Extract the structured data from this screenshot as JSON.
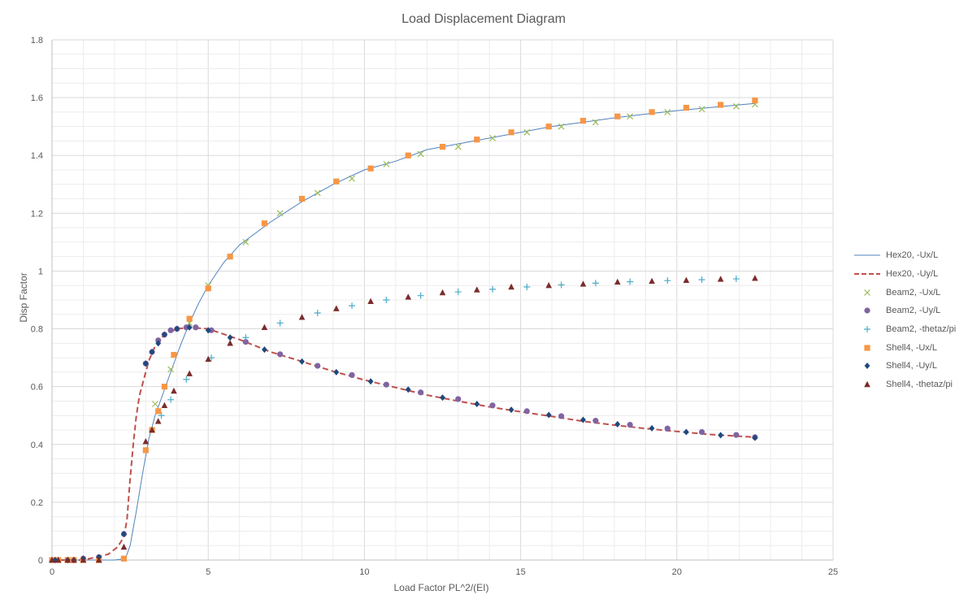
{
  "chart_data": {
    "type": "scatter",
    "title": "Load Displacement Diagram",
    "xlabel": "Load Factor PL^2/(EI)",
    "ylabel": "Disp Factor",
    "xlim": [
      0,
      25
    ],
    "ylim": [
      0,
      1.8
    ],
    "x_ticks": [
      "0",
      "5",
      "10",
      "15",
      "20",
      "25"
    ],
    "y_ticks": [
      "0",
      "0.2",
      "0.4",
      "0.6",
      "0.8",
      "1",
      "1.2",
      "1.4",
      "1.6",
      "1.8"
    ],
    "grid": true,
    "legend_position": "right",
    "series": [
      {
        "name": "Hex20, -Ux/L",
        "style": "line",
        "color": "#4f81bd",
        "x": [
          0,
          1,
          2,
          2.35,
          2.5,
          2.7,
          2.9,
          3.1,
          3.3,
          3.5,
          3.8,
          4.1,
          4.4,
          4.7,
          5.0,
          5.5,
          6.0,
          6.5,
          7.0,
          8.0,
          9.0,
          10.0,
          11.0,
          12.0,
          13.0,
          14.0,
          15.0,
          16.0,
          17.0,
          18.0,
          19.0,
          20.0,
          21.0,
          22.5
        ],
        "y": [
          0,
          0,
          0,
          0.005,
          0.05,
          0.17,
          0.3,
          0.42,
          0.5,
          0.56,
          0.65,
          0.74,
          0.82,
          0.89,
          0.95,
          1.03,
          1.09,
          1.13,
          1.17,
          1.24,
          1.3,
          1.35,
          1.38,
          1.42,
          1.44,
          1.46,
          1.48,
          1.5,
          1.515,
          1.53,
          1.543,
          1.555,
          1.565,
          1.58
        ]
      },
      {
        "name": "Hex20, -Uy/L",
        "style": "dashed",
        "color": "#c0504d",
        "x": [
          0,
          1,
          1.8,
          2.1,
          2.3,
          2.4,
          2.5,
          2.6,
          2.7,
          2.8,
          2.9,
          3.0,
          3.1,
          3.3,
          3.6,
          4.0,
          4.4,
          5.0,
          6.0,
          7.0,
          8.0,
          9.0,
          10.0,
          11.0,
          12.0,
          13.0,
          14.0,
          15.0,
          16.0,
          17.0,
          18.0,
          19.0,
          20.0,
          21.0,
          22.5
        ],
        "y": [
          0,
          0,
          0.02,
          0.045,
          0.08,
          0.14,
          0.28,
          0.4,
          0.5,
          0.57,
          0.61,
          0.65,
          0.69,
          0.74,
          0.78,
          0.8,
          0.805,
          0.8,
          0.763,
          0.72,
          0.687,
          0.653,
          0.623,
          0.597,
          0.571,
          0.55,
          0.53,
          0.513,
          0.497,
          0.48,
          0.467,
          0.455,
          0.445,
          0.435,
          0.425
        ]
      },
      {
        "name": "Beam2, -Ux/L",
        "style": "marker",
        "marker": "x",
        "color": "#9bbb59",
        "x": [
          3.3,
          3.8,
          4.4,
          5.0,
          6.2,
          7.3,
          8.5,
          9.6,
          10.7,
          11.8,
          13.0,
          14.1,
          15.2,
          16.3,
          17.4,
          18.5,
          19.7,
          20.8,
          21.9,
          22.5
        ],
        "y": [
          0.54,
          0.66,
          0.82,
          0.95,
          1.1,
          1.2,
          1.27,
          1.32,
          1.37,
          1.405,
          1.43,
          1.46,
          1.48,
          1.5,
          1.515,
          1.535,
          1.55,
          1.56,
          1.57,
          1.577
        ]
      },
      {
        "name": "Beam2, -Uy/L",
        "style": "marker",
        "marker": "circle",
        "color": "#8064a2",
        "x": [
          0.1,
          0.5,
          0.7,
          1.0,
          1.5,
          2.3,
          3.0,
          3.2,
          3.4,
          3.6,
          3.8,
          4.0,
          4.3,
          4.6,
          5.1,
          6.2,
          7.3,
          8.5,
          9.6,
          10.7,
          11.8,
          13.0,
          14.1,
          15.2,
          16.3,
          17.4,
          18.5,
          19.7,
          20.8,
          21.9,
          22.5
        ],
        "y": [
          0,
          0,
          0,
          0.005,
          0.01,
          0.09,
          0.68,
          0.72,
          0.76,
          0.78,
          0.795,
          0.8,
          0.805,
          0.805,
          0.795,
          0.755,
          0.712,
          0.672,
          0.64,
          0.607,
          0.58,
          0.557,
          0.535,
          0.515,
          0.498,
          0.482,
          0.468,
          0.455,
          0.443,
          0.433,
          0.425
        ]
      },
      {
        "name": "Beam2, -thetaz/pi",
        "style": "marker",
        "marker": "plus",
        "color": "#4bacc6",
        "x": [
          3.5,
          3.8,
          4.3,
          5.1,
          6.2,
          7.3,
          8.5,
          9.6,
          10.7,
          11.8,
          13.0,
          14.1,
          15.2,
          16.3,
          17.4,
          18.5,
          19.7,
          20.8,
          21.9
        ],
        "y": [
          0.5,
          0.555,
          0.625,
          0.7,
          0.77,
          0.82,
          0.855,
          0.88,
          0.9,
          0.915,
          0.928,
          0.937,
          0.945,
          0.952,
          0.958,
          0.963,
          0.967,
          0.97,
          0.973
        ]
      },
      {
        "name": "Shell4, -Ux/L",
        "style": "marker",
        "marker": "square",
        "color": "#f79646",
        "x": [
          0,
          0.2,
          0.5,
          0.7,
          1.0,
          1.5,
          2.3,
          3.0,
          3.2,
          3.4,
          3.6,
          3.9,
          4.4,
          5.0,
          5.7,
          6.8,
          8.0,
          9.1,
          10.2,
          11.4,
          12.5,
          13.6,
          14.7,
          15.9,
          17.0,
          18.1,
          19.2,
          20.3,
          21.4,
          22.5
        ],
        "y": [
          0,
          0,
          0,
          0,
          0,
          0,
          0.005,
          0.38,
          0.45,
          0.515,
          0.6,
          0.71,
          0.835,
          0.94,
          1.05,
          1.165,
          1.25,
          1.31,
          1.355,
          1.4,
          1.43,
          1.455,
          1.48,
          1.5,
          1.52,
          1.535,
          1.55,
          1.565,
          1.575,
          1.59
        ]
      },
      {
        "name": "Shell4, -Uy/L",
        "style": "marker",
        "marker": "diamond",
        "color": "#1f497d",
        "x": [
          0.1,
          0.5,
          0.7,
          1.0,
          1.5,
          2.3,
          3.0,
          3.2,
          3.4,
          3.6,
          4.0,
          4.4,
          5.0,
          5.7,
          6.8,
          8.0,
          9.1,
          10.2,
          11.4,
          12.5,
          13.6,
          14.7,
          15.9,
          17.0,
          18.1,
          19.2,
          20.3,
          21.4,
          22.5
        ],
        "y": [
          0,
          0,
          0,
          0.005,
          0.01,
          0.09,
          0.68,
          0.72,
          0.75,
          0.78,
          0.8,
          0.805,
          0.795,
          0.77,
          0.728,
          0.687,
          0.65,
          0.618,
          0.59,
          0.562,
          0.54,
          0.52,
          0.502,
          0.485,
          0.47,
          0.456,
          0.443,
          0.432,
          0.423
        ]
      },
      {
        "name": "Shell4, -thetaz/pi",
        "style": "marker",
        "marker": "triangle",
        "color": "#7b2c2c",
        "x": [
          0,
          0.2,
          0.5,
          0.7,
          1.0,
          1.5,
          2.3,
          3.0,
          3.2,
          3.4,
          3.6,
          3.9,
          4.4,
          5.0,
          5.7,
          6.8,
          8.0,
          9.1,
          10.2,
          11.4,
          12.5,
          13.6,
          14.7,
          15.9,
          17.0,
          18.1,
          19.2,
          20.3,
          21.4,
          22.5
        ],
        "y": [
          0,
          0,
          0,
          0,
          0,
          0,
          0.045,
          0.41,
          0.45,
          0.48,
          0.535,
          0.585,
          0.645,
          0.695,
          0.75,
          0.805,
          0.84,
          0.87,
          0.895,
          0.91,
          0.925,
          0.935,
          0.945,
          0.95,
          0.955,
          0.962,
          0.965,
          0.968,
          0.972,
          0.975
        ]
      }
    ]
  }
}
